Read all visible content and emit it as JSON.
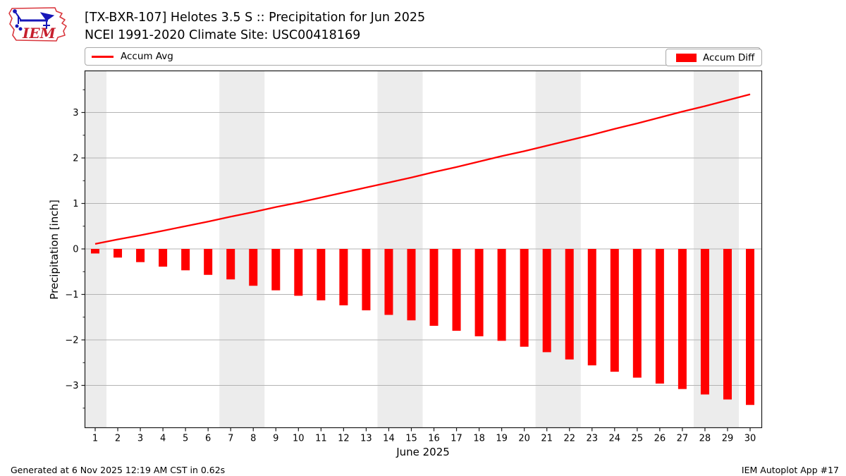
{
  "header": {
    "title": "[TX-BXR-107] Helotes 3.5 S :: Precipitation for Jun 2025",
    "subtitle": "NCEI 1991-2020 Climate Site: USC00418169",
    "logo_text": "IEM"
  },
  "legend": {
    "avg_label": "Accum Avg",
    "diff_label": "Accum Diff"
  },
  "footer": {
    "left": "Generated at 6 Nov 2025 12:19 AM CST in 0.62s",
    "right": "IEM Autoplot App #17"
  },
  "colors": {
    "accent": "#ff0000",
    "weekend_band": "#ececec",
    "grid": "#b3b3b3",
    "spine": "#1a1a1a",
    "logo_red": "#d9363c",
    "logo_blue": "#1717b8"
  },
  "chart_data": {
    "type": "bar",
    "title": "[TX-BXR-107] Helotes 3.5 S :: Precipitation for Jun 2025",
    "subtitle": "NCEI 1991-2020 Climate Site: USC00418169",
    "xlabel": "June 2025",
    "ylabel": "Precipitation [inch]",
    "days": [
      1,
      2,
      3,
      4,
      5,
      6,
      7,
      8,
      9,
      10,
      11,
      12,
      13,
      14,
      15,
      16,
      17,
      18,
      19,
      20,
      21,
      22,
      23,
      24,
      25,
      26,
      27,
      28,
      29,
      30
    ],
    "series": [
      {
        "name": "Accum Avg",
        "type": "line",
        "color": "#ff0000",
        "values": [
          0.11,
          0.21,
          0.3,
          0.4,
          0.5,
          0.6,
          0.71,
          0.81,
          0.92,
          1.02,
          1.13,
          1.24,
          1.35,
          1.46,
          1.57,
          1.69,
          1.8,
          1.92,
          2.04,
          2.15,
          2.27,
          2.39,
          2.51,
          2.64,
          2.76,
          2.89,
          3.02,
          3.14,
          3.27,
          3.4
        ]
      },
      {
        "name": "Accum Diff",
        "type": "bar",
        "color": "#ff0000",
        "values": [
          -0.1,
          -0.19,
          -0.29,
          -0.39,
          -0.47,
          -0.57,
          -0.67,
          -0.81,
          -0.91,
          -1.03,
          -1.13,
          -1.24,
          -1.35,
          -1.45,
          -1.57,
          -1.69,
          -1.8,
          -1.92,
          -2.02,
          -2.15,
          -2.27,
          -2.43,
          -2.56,
          -2.7,
          -2.83,
          -2.96,
          -3.08,
          -3.2,
          -3.31,
          -3.43
        ]
      }
    ],
    "ylim": [
      -3.93,
      3.91
    ],
    "yticks": [
      -3,
      -2,
      -1,
      0,
      1,
      2,
      3
    ],
    "ytick_labels": [
      "−3",
      "−2",
      "−1",
      "0",
      "1",
      "2",
      "3"
    ],
    "y_minor_ticks": [
      -3.5,
      -2.5,
      -1.5,
      -0.5,
      0.5,
      1.5,
      2.5,
      3.5
    ],
    "weekend_bands": [
      [
        0.5,
        1.5
      ],
      [
        6.5,
        8.5
      ],
      [
        13.5,
        15.5
      ],
      [
        20.5,
        22.5
      ],
      [
        27.5,
        29.5
      ]
    ],
    "grid": "horizontal",
    "legend_position": "top"
  }
}
